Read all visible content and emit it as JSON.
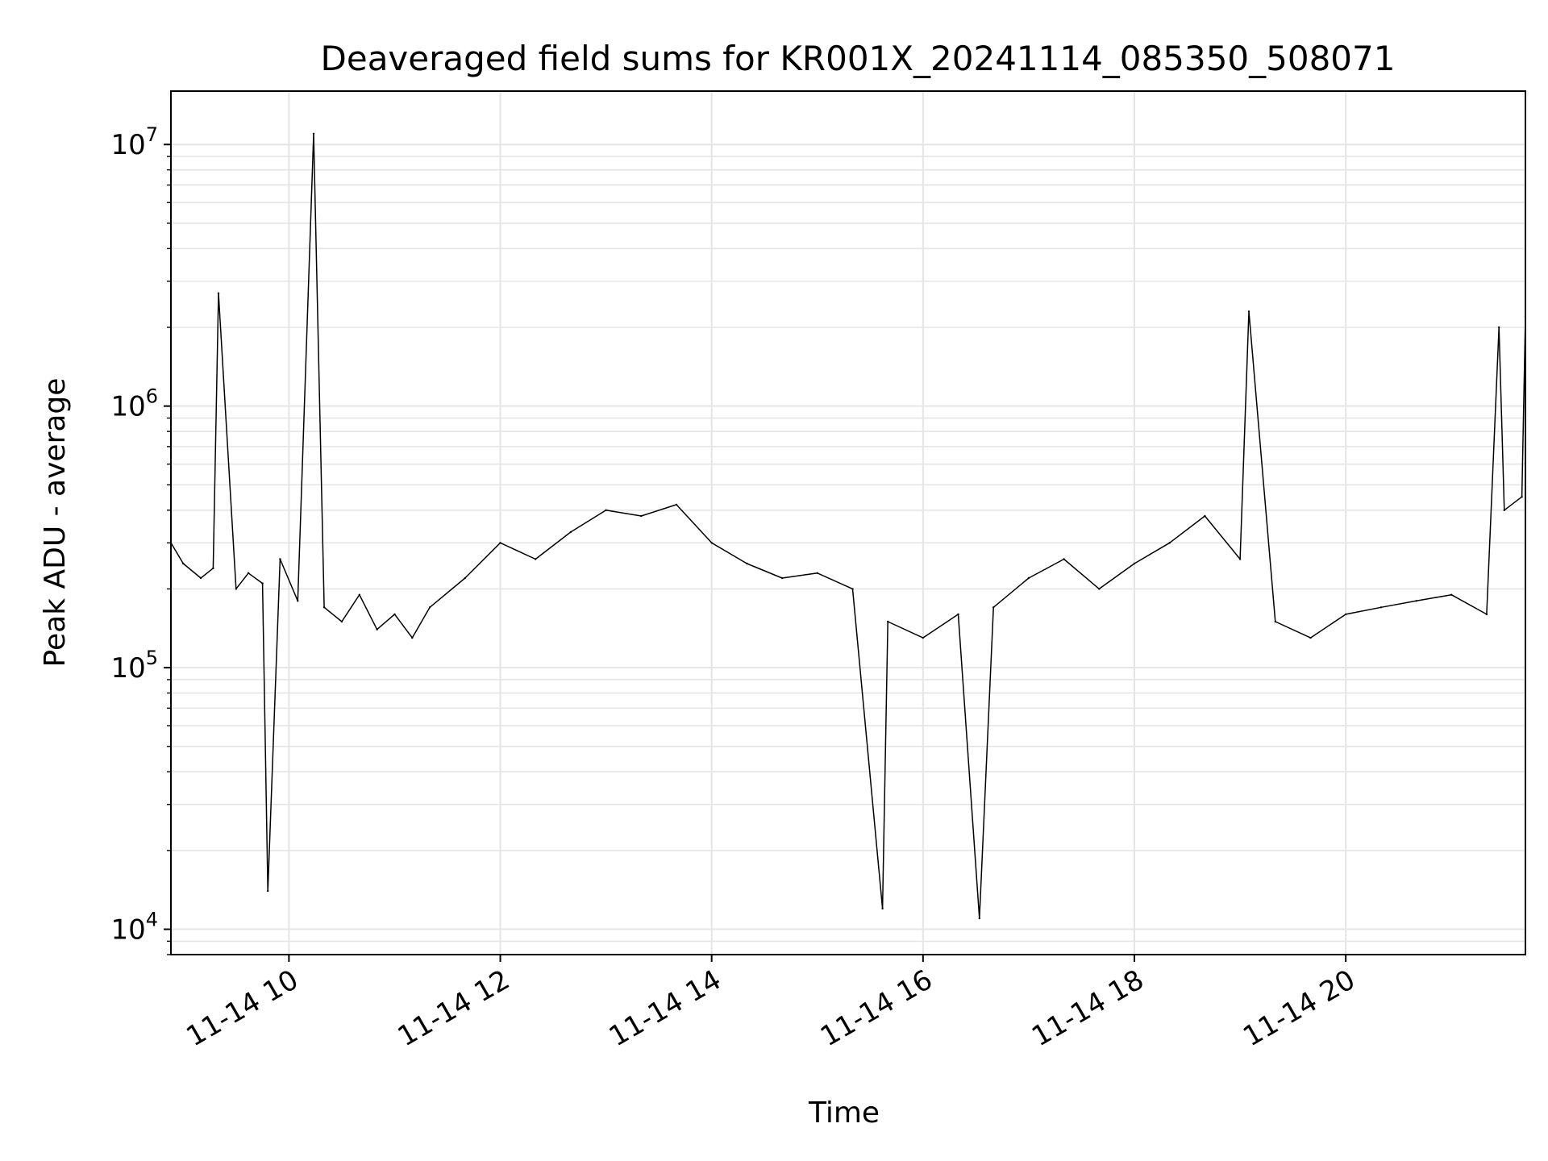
{
  "chart_data": {
    "type": "line",
    "title": "Deaveraged field sums for KR001X_20241114_085350_508071",
    "xlabel": "Time",
    "ylabel": "Peak ADU - average",
    "y_scale": "log",
    "ylim": [
      8000,
      16000000
    ],
    "xlim": [
      "2024-11-14T08:53:00",
      "2024-11-14T21:42:00"
    ],
    "grid": true,
    "line_color": "#000000",
    "grid_color": "#e5e5e5",
    "x_ticks": [
      {
        "value": "2024-11-14T10:00:00",
        "label": "11-14 10"
      },
      {
        "value": "2024-11-14T12:00:00",
        "label": "11-14 12"
      },
      {
        "value": "2024-11-14T14:00:00",
        "label": "11-14 14"
      },
      {
        "value": "2024-11-14T16:00:00",
        "label": "11-14 16"
      },
      {
        "value": "2024-11-14T18:00:00",
        "label": "11-14 18"
      },
      {
        "value": "2024-11-14T20:00:00",
        "label": "11-14 20"
      }
    ],
    "y_ticks": [
      {
        "value": 10000,
        "base": "10",
        "exp": "4"
      },
      {
        "value": 100000,
        "base": "10",
        "exp": "5"
      },
      {
        "value": 1000000,
        "base": "10",
        "exp": "6"
      },
      {
        "value": 10000000,
        "base": "10",
        "exp": "7"
      }
    ],
    "series": [
      {
        "x": [
          "2024-11-14T08:53:00",
          "2024-11-14T09:00:00",
          "2024-11-14T09:10:00",
          "2024-11-14T09:17:00",
          "2024-11-14T09:20:00",
          "2024-11-14T09:30:00",
          "2024-11-14T09:37:00",
          "2024-11-14T09:45:00",
          "2024-11-14T09:48:00",
          "2024-11-14T09:55:00",
          "2024-11-14T10:05:00",
          "2024-11-14T10:14:00",
          "2024-11-14T10:20:00",
          "2024-11-14T10:30:00",
          "2024-11-14T10:40:00",
          "2024-11-14T10:50:00",
          "2024-11-14T11:00:00",
          "2024-11-14T11:10:00",
          "2024-11-14T11:20:00",
          "2024-11-14T11:40:00",
          "2024-11-14T12:00:00",
          "2024-11-14T12:20:00",
          "2024-11-14T12:40:00",
          "2024-11-14T13:00:00",
          "2024-11-14T13:20:00",
          "2024-11-14T13:40:00",
          "2024-11-14T14:00:00",
          "2024-11-14T14:20:00",
          "2024-11-14T14:40:00",
          "2024-11-14T15:00:00",
          "2024-11-14T15:20:00",
          "2024-11-14T15:37:00",
          "2024-11-14T15:40:00",
          "2024-11-14T16:00:00",
          "2024-11-14T16:20:00",
          "2024-11-14T16:32:00",
          "2024-11-14T16:40:00",
          "2024-11-14T17:00:00",
          "2024-11-14T17:20:00",
          "2024-11-14T17:40:00",
          "2024-11-14T18:00:00",
          "2024-11-14T18:20:00",
          "2024-11-14T18:40:00",
          "2024-11-14T19:00:00",
          "2024-11-14T19:05:00",
          "2024-11-14T19:20:00",
          "2024-11-14T19:40:00",
          "2024-11-14T20:00:00",
          "2024-11-14T20:20:00",
          "2024-11-14T20:40:00",
          "2024-11-14T21:00:00",
          "2024-11-14T21:20:00",
          "2024-11-14T21:27:00",
          "2024-11-14T21:30:00",
          "2024-11-14T21:40:00",
          "2024-11-14T21:42:00"
        ],
        "y": [
          300000,
          250000,
          220000,
          240000,
          2700000,
          200000,
          230000,
          210000,
          14000,
          260000,
          180000,
          11000000,
          170000,
          150000,
          190000,
          140000,
          160000,
          130000,
          170000,
          220000,
          300000,
          260000,
          330000,
          400000,
          380000,
          420000,
          300000,
          250000,
          220000,
          230000,
          200000,
          12000,
          150000,
          130000,
          160000,
          11000,
          170000,
          220000,
          260000,
          200000,
          250000,
          300000,
          380000,
          260000,
          2300000,
          150000,
          130000,
          160000,
          170000,
          180000,
          190000,
          160000,
          2000000,
          400000,
          450000,
          2200000
        ]
      }
    ]
  }
}
